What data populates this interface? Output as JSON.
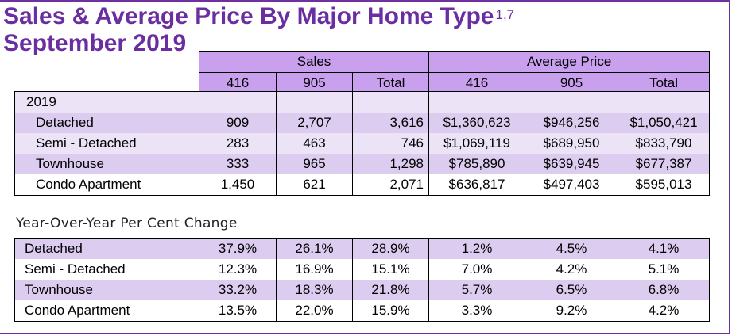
{
  "title": {
    "line1": "Sales & Average Price By Major Home Type",
    "superscript": "1,7",
    "line2": "September 2019"
  },
  "group_headers": {
    "sales": "Sales",
    "average_price": "Average Price"
  },
  "sub_headers": [
    "416",
    "905",
    "Total",
    "416",
    "905",
    "Total"
  ],
  "year_label": "2019",
  "rows_2019": [
    {
      "type": "Detached",
      "sales_416": "909",
      "sales_905": "2,707",
      "sales_total": "3,616",
      "price_416": "$1,360,623",
      "price_905": "$946,256",
      "price_total": "$1,050,421"
    },
    {
      "type": "Semi - Detached",
      "sales_416": "283",
      "sales_905": "463",
      "sales_total": "746",
      "price_416": "$1,069,119",
      "price_905": "$689,950",
      "price_total": "$833,790"
    },
    {
      "type": "Townhouse",
      "sales_416": "333",
      "sales_905": "965",
      "sales_total": "1,298",
      "price_416": "$785,890",
      "price_905": "$639,945",
      "price_total": "$677,387"
    },
    {
      "type": "Condo Apartment",
      "sales_416": "1,450",
      "sales_905": "621",
      "sales_total": "2,071",
      "price_416": "$636,817",
      "price_905": "$497,403",
      "price_total": "$595,013"
    }
  ],
  "yoy_title": "Year-Over-Year Per Cent Change",
  "rows_yoy": [
    {
      "type": "Detached",
      "sales_416": "37.9%",
      "sales_905": "26.1%",
      "sales_total": "28.9%",
      "price_416": "1.2%",
      "price_905": "4.5%",
      "price_total": "4.1%"
    },
    {
      "type": "Semi - Detached",
      "sales_416": "12.3%",
      "sales_905": "16.9%",
      "sales_total": "15.1%",
      "price_416": "7.0%",
      "price_905": "4.2%",
      "price_total": "5.1%"
    },
    {
      "type": "Townhouse",
      "sales_416": "33.2%",
      "sales_905": "18.3%",
      "sales_total": "21.8%",
      "price_416": "5.7%",
      "price_905": "6.5%",
      "price_total": "6.8%"
    },
    {
      "type": "Condo Apartment",
      "sales_416": "13.5%",
      "sales_905": "22.0%",
      "sales_total": "15.9%",
      "price_416": "3.3%",
      "price_905": "9.2%",
      "price_total": "4.2%"
    }
  ],
  "colors": {
    "title": "#6b2ea0",
    "header": "#c9a0ee",
    "row_dark": "#dccdf0",
    "row_light": "#ece3f7",
    "border_accent": "#7030a0"
  }
}
